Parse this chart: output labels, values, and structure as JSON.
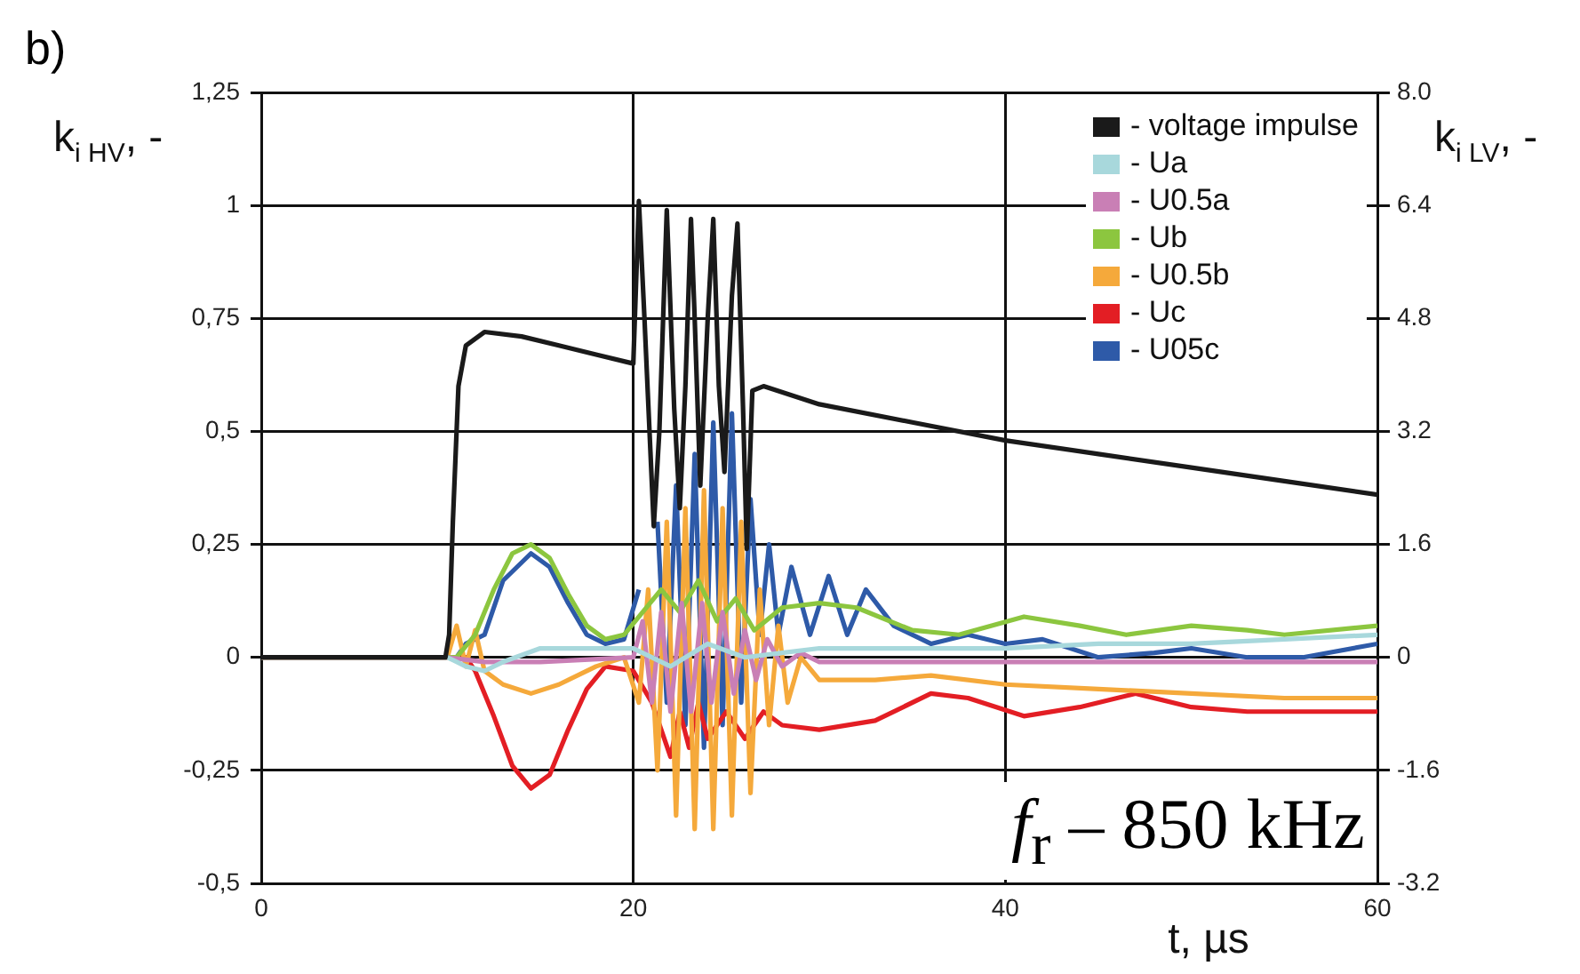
{
  "chart_data": {
    "type": "line",
    "xlabel": "t, µs",
    "ylabel": "k$_{i HV}$, -",
    "y2label": "k$_{i LV}$, -",
    "annotations": [
      "b)",
      "f$_{r}$ – 850 kHz"
    ],
    "xlim": [
      0,
      60
    ],
    "xticks": [
      0,
      20,
      40,
      60
    ],
    "ylim": [
      -0.5,
      1.25
    ],
    "yticks": [
      {
        "value": -0.5,
        "label": "-0,5"
      },
      {
        "value": -0.25,
        "label": "-0,25"
      },
      0,
      {
        "value": 0.25,
        "label": "0,25"
      },
      {
        "value": 0.5,
        "label": "0,5"
      },
      {
        "value": 0.75,
        "label": "0,75"
      },
      1,
      {
        "value": 1.25,
        "label": "1,25"
      }
    ],
    "y2lim": [
      -3.2,
      8
    ],
    "y2ticks": [
      -3.2,
      -1.6,
      0,
      1.6,
      3.2,
      4.8,
      6.4,
      {
        "value": 8,
        "label": "8.0"
      }
    ],
    "grid": true,
    "legend": "top right",
    "marker": "none",
    "line_style": "solid",
    "series": [
      {
        "name": "- voltage impulse",
        "color": "#1a1a1a",
        "x": [
          0,
          9.9,
          10.1,
          10.3,
          10.6,
          11,
          12,
          14,
          16,
          18,
          20,
          20.3,
          20.6,
          21.1,
          21.4,
          21.8,
          22.2,
          22.5,
          22.8,
          23.1,
          23.3,
          23.6,
          24,
          24.3,
          24.6,
          24.9,
          25.3,
          25.6,
          25.9,
          26.1,
          26.4,
          27,
          30,
          35,
          40,
          45,
          50,
          55,
          60
        ],
        "values": [
          0,
          0,
          0.05,
          0.3,
          0.6,
          0.69,
          0.72,
          0.71,
          0.69,
          0.67,
          0.65,
          1.01,
          0.75,
          0.29,
          0.5,
          0.99,
          0.55,
          0.33,
          0.6,
          0.97,
          0.75,
          0.38,
          0.75,
          0.97,
          0.6,
          0.41,
          0.8,
          0.96,
          0.55,
          0.24,
          0.59,
          0.6,
          0.56,
          0.52,
          0.48,
          0.45,
          0.42,
          0.39,
          0.36
        ]
      },
      {
        "name": "- Ua",
        "color": "#a8d8dc",
        "x": [
          0,
          10,
          11,
          12,
          13,
          15,
          18,
          20,
          22,
          24,
          26,
          28,
          30,
          35,
          40,
          45,
          50,
          55,
          60
        ],
        "values": [
          0,
          0,
          -0.02,
          -0.03,
          -0.01,
          0.02,
          0.02,
          0.02,
          -0.02,
          0.03,
          0,
          0.01,
          0.02,
          0.02,
          0.02,
          0.03,
          0.03,
          0.04,
          0.05
        ]
      },
      {
        "name": "- U0.5a",
        "color": "#c97fb5",
        "x": [
          0,
          10,
          12,
          15,
          20,
          20.5,
          21,
          21.5,
          22,
          22.6,
          23.1,
          23.7,
          24.2,
          24.8,
          25.4,
          26,
          26.6,
          27.2,
          28,
          29,
          30,
          35,
          40,
          50,
          60
        ],
        "values": [
          0,
          0,
          -0.01,
          -0.01,
          0,
          0.08,
          -0.1,
          0.1,
          -0.12,
          0.12,
          -0.12,
          0.12,
          -0.1,
          0.1,
          -0.08,
          0.06,
          -0.05,
          0.04,
          -0.02,
          0.01,
          -0.01,
          -0.01,
          -0.01,
          -0.01,
          -0.01
        ]
      },
      {
        "name": "- Ub",
        "color": "#8cc63f",
        "x": [
          0,
          10.5,
          11.5,
          12.5,
          13.5,
          14.5,
          15.5,
          16.5,
          17.5,
          18.5,
          19.5,
          20.5,
          21.5,
          22.5,
          23.5,
          24.5,
          25.5,
          26.5,
          28,
          30,
          32,
          35,
          37.5,
          41,
          44,
          46.5,
          50,
          53,
          55,
          60
        ],
        "values": [
          0,
          0,
          0.05,
          0.15,
          0.23,
          0.25,
          0.22,
          0.14,
          0.07,
          0.04,
          0.05,
          0.1,
          0.15,
          0.1,
          0.17,
          0.08,
          0.13,
          0.06,
          0.11,
          0.12,
          0.11,
          0.06,
          0.05,
          0.09,
          0.07,
          0.05,
          0.07,
          0.06,
          0.05,
          0.07
        ]
      },
      {
        "name": "- U0.5b",
        "color": "#f5a93b",
        "x": [
          0,
          10,
          10.5,
          11,
          11.5,
          12,
          13,
          14.5,
          16,
          18,
          19.5,
          20.3,
          20.8,
          21.3,
          21.8,
          22.3,
          22.8,
          23.3,
          23.8,
          24.3,
          24.8,
          25.3,
          25.8,
          26.3,
          26.8,
          27.3,
          27.8,
          28.3,
          29,
          30,
          33,
          36,
          40,
          45,
          50,
          55,
          60
        ],
        "values": [
          0,
          0,
          0.07,
          -0.02,
          0.06,
          -0.03,
          -0.06,
          -0.08,
          -0.06,
          -0.02,
          0,
          -0.1,
          0.15,
          -0.25,
          0.3,
          -0.35,
          0.33,
          -0.38,
          0.37,
          -0.38,
          0.33,
          -0.35,
          0.3,
          -0.3,
          0.15,
          -0.15,
          0.07,
          -0.1,
          0,
          -0.05,
          -0.05,
          -0.04,
          -0.06,
          -0.07,
          -0.08,
          -0.09,
          -0.09
        ]
      },
      {
        "name": "- Uc",
        "color": "#e31e24",
        "x": [
          0,
          11,
          11.5,
          12.5,
          13.5,
          14.5,
          15.5,
          16.5,
          17.5,
          18.5,
          20,
          21,
          22,
          22.5,
          23,
          23.5,
          24,
          25,
          26,
          27,
          28,
          30,
          33,
          36,
          38,
          41,
          44,
          47,
          50,
          53,
          56,
          60
        ],
        "values": [
          0,
          0,
          -0.03,
          -0.13,
          -0.24,
          -0.29,
          -0.26,
          -0.16,
          -0.07,
          -0.02,
          -0.03,
          -0.1,
          -0.22,
          -0.12,
          -0.2,
          -0.1,
          -0.18,
          -0.12,
          -0.18,
          -0.12,
          -0.15,
          -0.16,
          -0.14,
          -0.08,
          -0.09,
          -0.13,
          -0.11,
          -0.08,
          -0.11,
          -0.12,
          -0.12,
          -0.12
        ]
      },
      {
        "name": "- U05c",
        "color": "#2e5aa8",
        "x": [
          0,
          10.5,
          11,
          12,
          13,
          14.5,
          15.5,
          16.5,
          17.5,
          18.5,
          19.5,
          20.3,
          20.8,
          21.3,
          21.8,
          22.3,
          22.8,
          23.3,
          23.8,
          24.3,
          24.8,
          25.3,
          25.8,
          26.3,
          26.8,
          27.3,
          27.8,
          28.5,
          29.5,
          30.5,
          31.5,
          32.5,
          34,
          36,
          38,
          40,
          42,
          45,
          48,
          50,
          53,
          56,
          60
        ],
        "values": [
          0,
          0,
          0.03,
          0.05,
          0.17,
          0.23,
          0.2,
          0.12,
          0.05,
          0.03,
          0.04,
          0.15,
          null,
          0.3,
          -0.1,
          0.38,
          -0.15,
          0.45,
          -0.2,
          0.52,
          -0.15,
          0.54,
          -0.1,
          0.35,
          0.05,
          0.25,
          0.05,
          0.2,
          0.05,
          0.18,
          0.05,
          0.15,
          0.07,
          0.03,
          0.05,
          0.03,
          0.04,
          0,
          0.01,
          0.02,
          0,
          0,
          0.03
        ]
      }
    ]
  }
}
